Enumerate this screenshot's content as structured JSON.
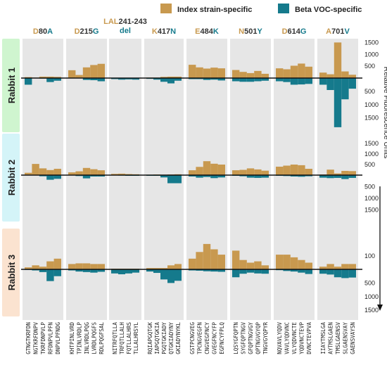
{
  "chart_data": {
    "type": "bar",
    "legend": {
      "placement": "top",
      "entries": [
        {
          "key": "index",
          "label": "Index strain-specific",
          "color": "#C8994F"
        },
        {
          "key": "beta",
          "label": "Beta VOC-specific",
          "color": "#157A8C"
        }
      ]
    },
    "ylabel": "Relative Fluorescence Units",
    "colors": {
      "index": "#C8994F",
      "beta": "#157A8C",
      "panel": "#E6E6E6"
    },
    "mutations": [
      {
        "parts": [
          [
            "D",
            "i"
          ],
          [
            "80",
            ""
          ],
          [
            "A",
            "b"
          ]
        ]
      },
      {
        "parts": [
          [
            "D",
            "i"
          ],
          [
            "215",
            ""
          ],
          [
            "G",
            "b"
          ]
        ]
      },
      {
        "parts": [
          [
            "LAL",
            "i"
          ],
          [
            "241-243",
            ""
          ]
        ],
        "line2": [
          [
            "del",
            "b"
          ]
        ]
      },
      {
        "parts": [
          [
            "K",
            "i"
          ],
          [
            "417",
            ""
          ],
          [
            "N",
            "b"
          ]
        ]
      },
      {
        "parts": [
          [
            "E",
            "i"
          ],
          [
            "484",
            ""
          ],
          [
            "K",
            "b"
          ]
        ]
      },
      {
        "parts": [
          [
            "N",
            "i"
          ],
          [
            "501",
            ""
          ],
          [
            "Y",
            "b"
          ]
        ]
      },
      {
        "parts": [
          [
            "D",
            "i"
          ],
          [
            "614",
            ""
          ],
          [
            "G",
            "b"
          ]
        ]
      },
      {
        "parts": [
          [
            "A",
            "i"
          ],
          [
            "701",
            ""
          ],
          [
            "V",
            "b"
          ]
        ]
      }
    ],
    "peptides": [
      [
        "GTNGTKRFDN",
        "NGTKRFDNPV",
        "TKRFDNPVLP",
        "RFDNPVLPFN",
        "DNPVLPFNDG"
      ],
      [
        "KHTPINLVRD",
        "TPINLVRDLP",
        "INLVRDLPQG",
        "LVRDLPQGFS",
        "RDLPQGFSAL"
      ],
      [
        "NITRFQTLLA",
        "TRFQTLLALH",
        "FQTLLALHRS",
        "TLLALHRSYL"
      ],
      [
        "RQIAPGQTGK",
        "IAPGQTGKIA",
        "PGQTGKIADY",
        "QTGKIADYNY",
        "GKIADYNYKL"
      ],
      [
        "GSTPCNGVEG",
        "TPCNGVEGFN",
        "CNGVEGFNCY",
        "GVEGFNCYFP",
        "EGFNCYFPLQ"
      ],
      [
        "LQSYGFQPTN",
        "SYGFQPTNGV",
        "GFQPTNGVGY",
        "QPTNGVGYQP",
        "TNGVGYQPYR"
      ],
      [
        "NQVAVLYQDV",
        "VAVLYQDVNC",
        "VLYQDVNCTE",
        "YQDVNCTEVP",
        "DVNCTEVPVA"
      ],
      [
        "IIAYTMSLGA",
        "AYTMSLGAEN",
        "TMSLGAENSV",
        "SLGAENSVAY",
        "GAENSVAYSN"
      ]
    ],
    "rabbits": [
      {
        "label": "Rabbit 1",
        "axis": {
          "up_ticks": [
            500,
            1000,
            1500
          ],
          "down_ticks": [
            500,
            1000,
            1500
          ],
          "up_max": 1600,
          "down_max": 1800
        },
        "index_values": [
          [
            40,
            20,
            60,
            60,
            50
          ],
          [
            330,
            130,
            450,
            550,
            600
          ],
          [
            15,
            10,
            10,
            10
          ],
          [
            20,
            20,
            50,
            60,
            60
          ],
          [
            560,
            450,
            400,
            440,
            410
          ],
          [
            340,
            260,
            210,
            300,
            180
          ],
          [
            410,
            370,
            520,
            610,
            480
          ],
          [
            230,
            160,
            1500,
            280,
            140
          ]
        ],
        "beta_values": [
          [
            250,
            10,
            20,
            150,
            100
          ],
          [
            10,
            10,
            70,
            80,
            120
          ],
          [
            40,
            60,
            50,
            60
          ],
          [
            30,
            60,
            140,
            200,
            100
          ],
          [
            40,
            40,
            70,
            60,
            90
          ],
          [
            120,
            140,
            140,
            120,
            100
          ],
          [
            120,
            150,
            250,
            240,
            220
          ],
          [
            250,
            450,
            1850,
            800,
            400
          ]
        ]
      },
      {
        "label": "Rabbit 2",
        "axis": {
          "up_ticks": [
            500,
            1000,
            1500
          ],
          "down_ticks": [
            500,
            1000,
            1500
          ],
          "up_max": 1600,
          "down_max": 1700
        },
        "index_values": [
          [
            110,
            530,
            320,
            240,
            300
          ],
          [
            130,
            180,
            340,
            280,
            230
          ],
          [
            60,
            70,
            50,
            40
          ],
          [
            20,
            30,
            20,
            30,
            40
          ],
          [
            230,
            390,
            660,
            540,
            500
          ],
          [
            230,
            250,
            320,
            270,
            210
          ],
          [
            400,
            450,
            500,
            470,
            300
          ],
          [
            30,
            260,
            80,
            200,
            190
          ]
        ],
        "beta_values": [
          [
            10,
            10,
            50,
            200,
            160
          ],
          [
            10,
            40,
            140,
            60,
            60
          ],
          [
            10,
            20,
            30,
            30
          ],
          [
            30,
            30,
            100,
            350,
            350
          ],
          [
            60,
            110,
            80,
            130,
            100
          ],
          [
            30,
            50,
            110,
            120,
            110
          ],
          [
            30,
            40,
            60,
            70,
            50
          ],
          [
            110,
            130,
            120,
            170,
            120
          ]
        ]
      },
      {
        "label": "Rabbit 3",
        "axis": {
          "up_ticks": [
            100
          ],
          "down_ticks": [
            500,
            1000,
            1500
          ],
          "up_max": 200,
          "down_max": 1650
        },
        "index_values": [
          [
            15,
            30,
            20,
            60,
            80
          ],
          [
            40,
            45,
            45,
            40,
            40
          ],
          [
            5,
            5,
            5,
            5
          ],
          [
            10,
            10,
            10,
            30,
            40
          ],
          [
            80,
            130,
            190,
            150,
            110
          ],
          [
            140,
            70,
            50,
            60,
            30
          ],
          [
            110,
            110,
            90,
            70,
            50
          ],
          [
            20,
            40,
            20,
            40,
            40
          ]
        ],
        "beta_values": [
          [
            20,
            40,
            100,
            430,
            250
          ],
          [
            40,
            80,
            100,
            120,
            90
          ],
          [
            150,
            180,
            150,
            120
          ],
          [
            80,
            130,
            370,
            500,
            420
          ],
          [
            40,
            50,
            70,
            80,
            90
          ],
          [
            290,
            160,
            120,
            150,
            160
          ],
          [
            30,
            60,
            80,
            120,
            170
          ],
          [
            160,
            190,
            290,
            320,
            300
          ]
        ]
      }
    ]
  }
}
